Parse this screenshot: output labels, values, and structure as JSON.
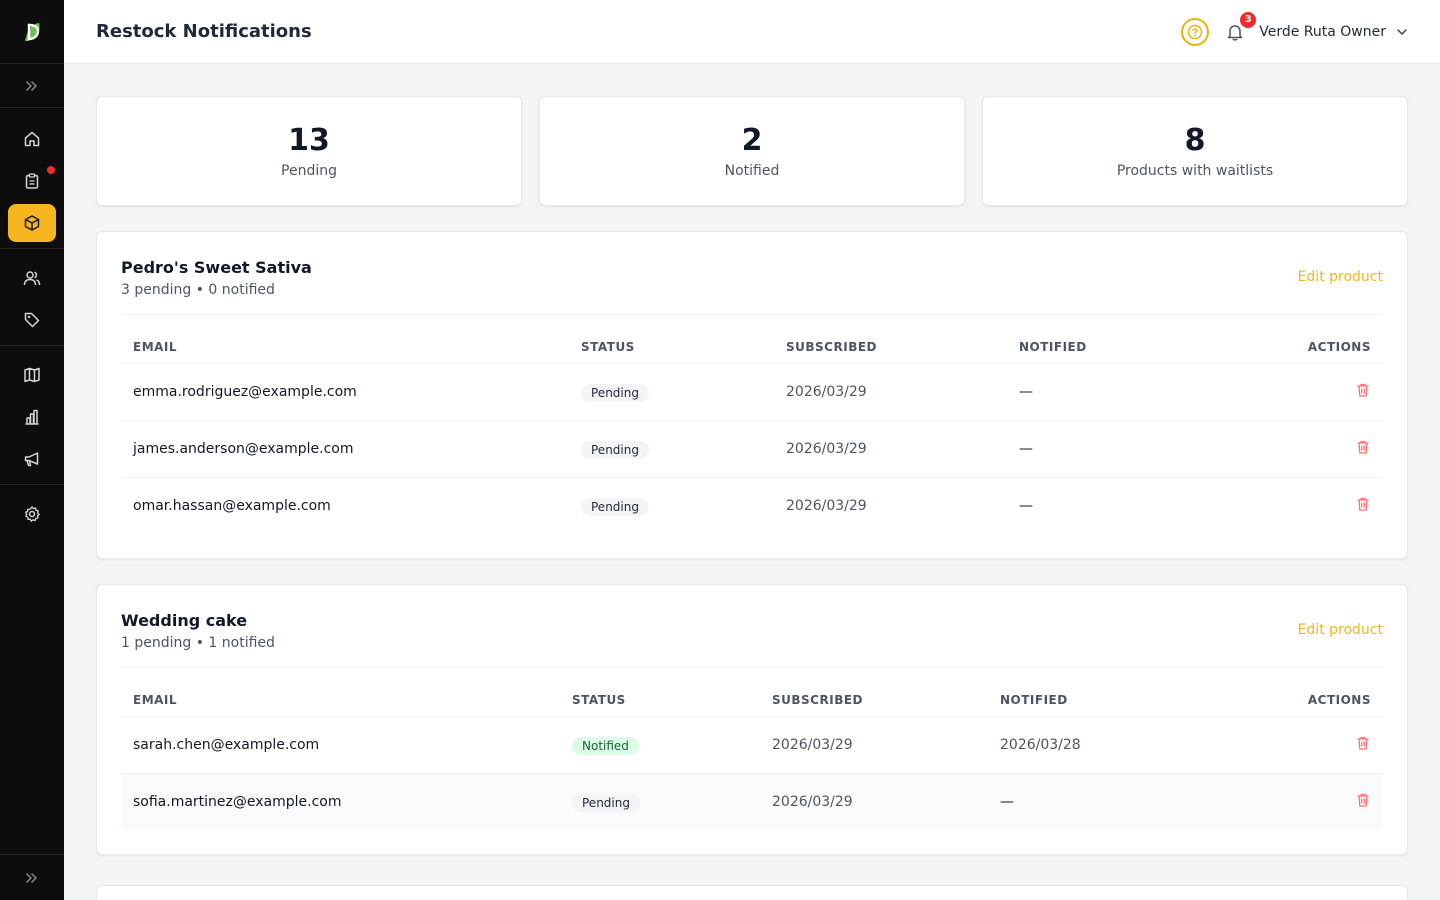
{
  "header": {
    "title": "Restock Notifications",
    "notification_count": "3",
    "user_name": "Verde Ruta Owner"
  },
  "sidebar": {
    "items": [
      {
        "name": "home",
        "icon": "home-icon"
      },
      {
        "name": "orders",
        "icon": "clipboard-icon",
        "has_alert": true
      },
      {
        "name": "products",
        "icon": "box-icon",
        "active": true
      },
      {
        "name": "customers",
        "icon": "users-icon"
      },
      {
        "name": "discounts",
        "icon": "tag-icon"
      },
      {
        "name": "menu",
        "icon": "map-icon"
      },
      {
        "name": "analytics",
        "icon": "bar-chart-icon"
      },
      {
        "name": "marketing",
        "icon": "megaphone-icon"
      },
      {
        "name": "settings",
        "icon": "gear-icon"
      }
    ],
    "accent_color": "#f6b51e"
  },
  "stats": [
    {
      "value": "13",
      "label": "Pending"
    },
    {
      "value": "2",
      "label": "Notified"
    },
    {
      "value": "8",
      "label": "Products with waitlists"
    }
  ],
  "table_headers": {
    "email": "EMAIL",
    "status": "STATUS",
    "subscribed": "SUBSCRIBED",
    "notified": "NOTIFIED",
    "actions": "ACTIONS"
  },
  "products": [
    {
      "name": "Pedro's Sweet Sativa",
      "summary": "3 pending • 0 notified",
      "edit_label": "Edit product",
      "rows": [
        {
          "email": "emma.rodriguez@example.com",
          "status": "Pending",
          "subscribed": "2026/03/29",
          "notified": "—"
        },
        {
          "email": "james.anderson@example.com",
          "status": "Pending",
          "subscribed": "2026/03/29",
          "notified": "—"
        },
        {
          "email": "omar.hassan@example.com",
          "status": "Pending",
          "subscribed": "2026/03/29",
          "notified": "—"
        }
      ]
    },
    {
      "name": "Wedding cake",
      "summary": "1 pending • 1 notified",
      "edit_label": "Edit product",
      "rows": [
        {
          "email": "sarah.chen@example.com",
          "status": "Notified",
          "subscribed": "2026/03/29",
          "notified": "2026/03/28"
        },
        {
          "email": "sofia.martinez@example.com",
          "status": "Pending",
          "subscribed": "2026/03/29",
          "notified": "—"
        }
      ]
    }
  ]
}
